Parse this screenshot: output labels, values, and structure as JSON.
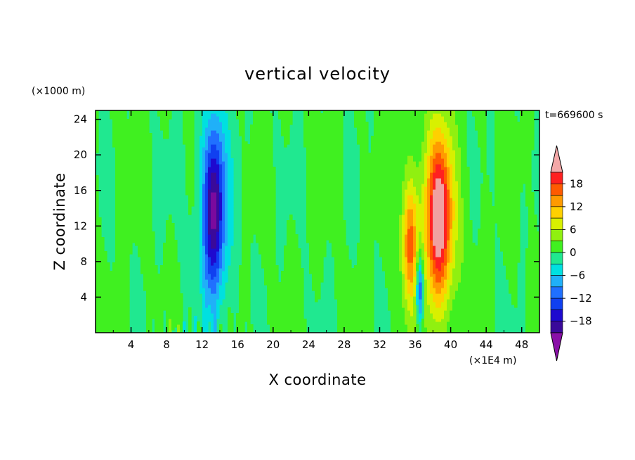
{
  "chart_data": {
    "type": "heatmap",
    "title": "vertical velocity",
    "xlabel": "X coordinate",
    "ylabel": "Z coordinate",
    "x_units": "(×1E4 m)",
    "y_units": "(×1000 m)",
    "time_label": "t=669600 s",
    "xlim": [
      0,
      50
    ],
    "ylim": [
      0,
      25
    ],
    "x_ticks": [
      "4",
      "8",
      "12",
      "16",
      "20",
      "24",
      "28",
      "32",
      "36",
      "40",
      "44",
      "48"
    ],
    "y_ticks": [
      "4",
      "8",
      "12",
      "16",
      "20",
      "24"
    ],
    "colorbar": {
      "labels": [
        "18",
        "12",
        "6",
        "0",
        "−6",
        "−12",
        "−18"
      ],
      "levels": [
        -21,
        -18,
        -15,
        -12,
        -9,
        -6,
        -3,
        0,
        3,
        6,
        9,
        12,
        15,
        18,
        21
      ],
      "colors": [
        "#7a0a9e",
        "#3a0a9a",
        "#1e0acf",
        "#1040f0",
        "#2070ff",
        "#20b0f8",
        "#00e0e0",
        "#20e890",
        "#40f020",
        "#90f010",
        "#d8f000",
        "#ffd000",
        "#ff9a00",
        "#ff5a00",
        "#ff2020",
        "#f0a0a0"
      ],
      "under_color": "#8a10a8",
      "over_color": "#f4a8a8"
    },
    "features": [
      {
        "kind": "downdraft",
        "x": 13.3,
        "z_center": 14,
        "z_half_height": 11,
        "x_half_width": 1.2,
        "min_value": -19
      },
      {
        "kind": "updraft",
        "x": 38.7,
        "z_center": 13,
        "z_half_height": 11,
        "x_half_width": 1.5,
        "max_value": 20
      },
      {
        "kind": "updraft",
        "x": 35.4,
        "z_center": 10,
        "z_half_height": 8,
        "x_half_width": 0.9,
        "max_value": 14
      },
      {
        "kind": "downdraft",
        "x": 36.5,
        "z_center": 5,
        "z_half_height": 5,
        "x_half_width": 0.45,
        "min_value": -16
      }
    ]
  }
}
